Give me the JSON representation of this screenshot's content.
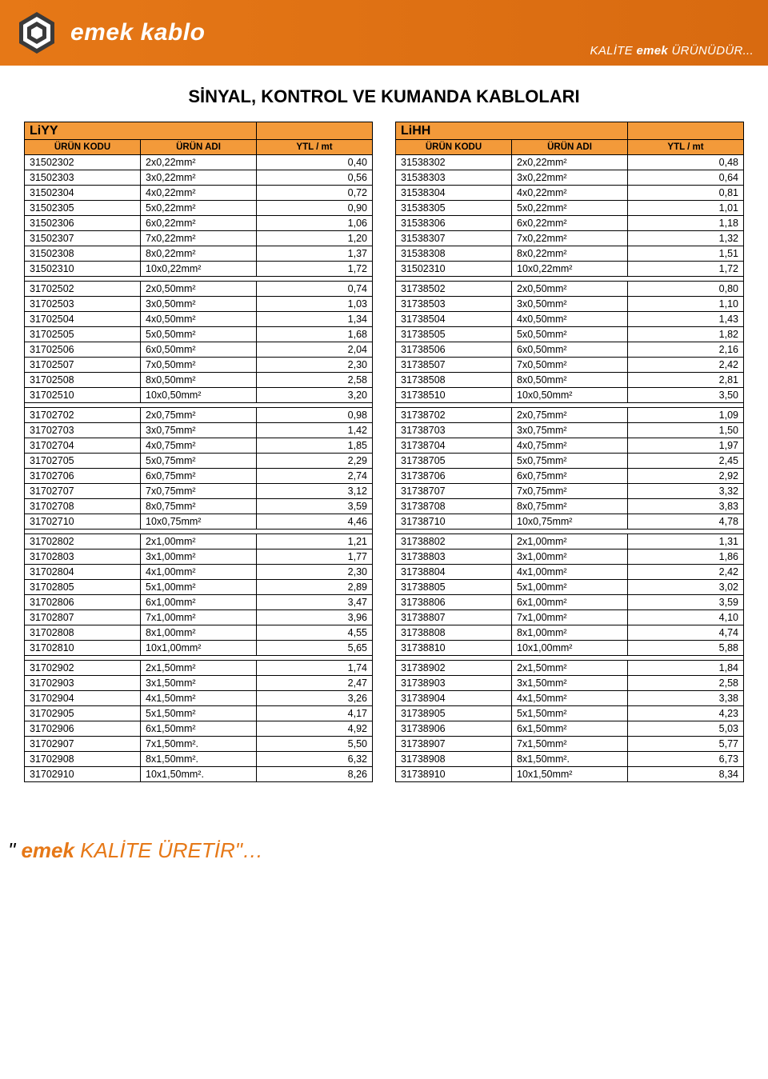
{
  "header": {
    "brand": "emek kablo",
    "tagline_pre": "KALİTE ",
    "tagline_bold": "emek",
    "tagline_post": " ÜRÜNÜDÜR...",
    "banner_bg_start": "#e67817",
    "banner_bg_end": "#d86a10",
    "text_color": "#ffffff"
  },
  "page_title": "SİNYAL, KONTROL VE KUMANDA KABLOLARI",
  "columns": {
    "code": "ÜRÜN KODU",
    "name": "ÜRÜN ADI",
    "price": "YTL / mt"
  },
  "table_header_bg": "#f39a3a",
  "left": {
    "title_left": "LiYY",
    "title_right": "<TSEK>",
    "groups": [
      [
        [
          "31502302",
          "2x0,22mm²",
          "0,40"
        ],
        [
          "31502303",
          "3x0,22mm²",
          "0,56"
        ],
        [
          "31502304",
          "4x0,22mm²",
          "0,72"
        ],
        [
          "31502305",
          "5x0,22mm²",
          "0,90"
        ],
        [
          "31502306",
          "6x0,22mm²",
          "1,06"
        ],
        [
          "31502307",
          "7x0,22mm²",
          "1,20"
        ],
        [
          "31502308",
          "8x0,22mm²",
          "1,37"
        ],
        [
          "31502310",
          "10x0,22mm²",
          "1,72"
        ]
      ],
      [
        [
          "31702502",
          "2x0,50mm²",
          "0,74"
        ],
        [
          "31702503",
          "3x0,50mm²",
          "1,03"
        ],
        [
          "31702504",
          "4x0,50mm²",
          "1,34"
        ],
        [
          "31702505",
          "5x0,50mm²",
          "1,68"
        ],
        [
          "31702506",
          "6x0,50mm²",
          "2,04"
        ],
        [
          "31702507",
          "7x0,50mm²",
          "2,30"
        ],
        [
          "31702508",
          "8x0,50mm²",
          "2,58"
        ],
        [
          "31702510",
          "10x0,50mm²",
          "3,20"
        ]
      ],
      [
        [
          "31702702",
          "2x0,75mm²",
          "0,98"
        ],
        [
          "31702703",
          "3x0,75mm²",
          "1,42"
        ],
        [
          "31702704",
          "4x0,75mm²",
          "1,85"
        ],
        [
          "31702705",
          "5x0,75mm²",
          "2,29"
        ],
        [
          "31702706",
          "6x0,75mm²",
          "2,74"
        ],
        [
          "31702707",
          "7x0,75mm²",
          "3,12"
        ],
        [
          "31702708",
          "8x0,75mm²",
          "3,59"
        ],
        [
          "31702710",
          "10x0,75mm²",
          "4,46"
        ]
      ],
      [
        [
          "31702802",
          "2x1,00mm²",
          "1,21"
        ],
        [
          "31702803",
          "3x1,00mm²",
          "1,77"
        ],
        [
          "31702804",
          "4x1,00mm²",
          "2,30"
        ],
        [
          "31702805",
          "5x1,00mm²",
          "2,89"
        ],
        [
          "31702806",
          "6x1,00mm²",
          "3,47"
        ],
        [
          "31702807",
          "7x1,00mm²",
          "3,96"
        ],
        [
          "31702808",
          "8x1,00mm²",
          "4,55"
        ],
        [
          "31702810",
          "10x1,00mm²",
          "5,65"
        ]
      ],
      [
        [
          "31702902",
          "2x1,50mm²",
          "1,74"
        ],
        [
          "31702903",
          "3x1,50mm²",
          "2,47"
        ],
        [
          "31702904",
          "4x1,50mm²",
          "3,26"
        ],
        [
          "31702905",
          "5x1,50mm²",
          "4,17"
        ],
        [
          "31702906",
          "6x1,50mm²",
          "4,92"
        ],
        [
          "31702907",
          "7x1,50mm².",
          "5,50"
        ],
        [
          "31702908",
          "8x1,50mm².",
          "6,32"
        ],
        [
          "31702910",
          "10x1,50mm².",
          "8,26"
        ]
      ]
    ]
  },
  "right": {
    "title_left": "LiHH",
    "title_right": "<TSEK>",
    "groups": [
      [
        [
          "31538302",
          "2x0,22mm²",
          "0,48"
        ],
        [
          "31538303",
          "3x0,22mm²",
          "0,64"
        ],
        [
          "31538304",
          "4x0,22mm²",
          "0,81"
        ],
        [
          "31538305",
          "5x0,22mm²",
          "1,01"
        ],
        [
          "31538306",
          "6x0,22mm²",
          "1,18"
        ],
        [
          "31538307",
          "7x0,22mm²",
          "1,32"
        ],
        [
          "31538308",
          "8x0,22mm²",
          "1,51"
        ],
        [
          "31502310",
          "10x0,22mm²",
          "1,72"
        ]
      ],
      [
        [
          "31738502",
          "2x0,50mm²",
          "0,80"
        ],
        [
          "31738503",
          "3x0,50mm²",
          "1,10"
        ],
        [
          "31738504",
          "4x0,50mm²",
          "1,43"
        ],
        [
          "31738505",
          "5x0,50mm²",
          "1,82"
        ],
        [
          "31738506",
          "6x0,50mm²",
          "2,16"
        ],
        [
          "31738507",
          "7x0,50mm²",
          "2,42"
        ],
        [
          "31738508",
          "8x0,50mm²",
          "2,81"
        ],
        [
          "31738510",
          "10x0,50mm²",
          "3,50"
        ]
      ],
      [
        [
          "31738702",
          "2x0,75mm²",
          "1,09"
        ],
        [
          "31738703",
          "3x0,75mm²",
          "1,50"
        ],
        [
          "31738704",
          "4x0,75mm²",
          "1,97"
        ],
        [
          "31738705",
          "5x0,75mm²",
          "2,45"
        ],
        [
          "31738706",
          "6x0,75mm²",
          "2,92"
        ],
        [
          "31738707",
          "7x0,75mm²",
          "3,32"
        ],
        [
          "31738708",
          "8x0,75mm²",
          "3,83"
        ],
        [
          "31738710",
          "10x0,75mm²",
          "4,78"
        ]
      ],
      [
        [
          "31738802",
          "2x1,00mm²",
          "1,31"
        ],
        [
          "31738803",
          "3x1,00mm²",
          "1,86"
        ],
        [
          "31738804",
          "4x1,00mm²",
          "2,42"
        ],
        [
          "31738805",
          "5x1,00mm²",
          "3,02"
        ],
        [
          "31738806",
          "6x1,00mm²",
          "3,59"
        ],
        [
          "31738807",
          "7x1,00mm²",
          "4,10"
        ],
        [
          "31738808",
          "8x1,00mm²",
          "4,74"
        ],
        [
          "31738810",
          "10x1,00mm²",
          "5,88"
        ]
      ],
      [
        [
          "31738902",
          "2x1,50mm²",
          "1,84"
        ],
        [
          "31738903",
          "3x1,50mm²",
          "2,58"
        ],
        [
          "31738904",
          "4x1,50mm²",
          "3,38"
        ],
        [
          "31738905",
          "5x1,50mm²",
          "4,23"
        ],
        [
          "31738906",
          "6x1,50mm²",
          "5,03"
        ],
        [
          "31738907",
          "7x1,50mm²",
          "5,77"
        ],
        [
          "31738908",
          "8x1,50mm².",
          "6,73"
        ],
        [
          "31738910",
          "10x1,50mm²",
          "8,34"
        ]
      ]
    ]
  },
  "footer": {
    "quote_open": "\" ",
    "bold": "emek",
    "rest": " KALİTE ÜRETİR\"…",
    "color": "#e67817"
  }
}
